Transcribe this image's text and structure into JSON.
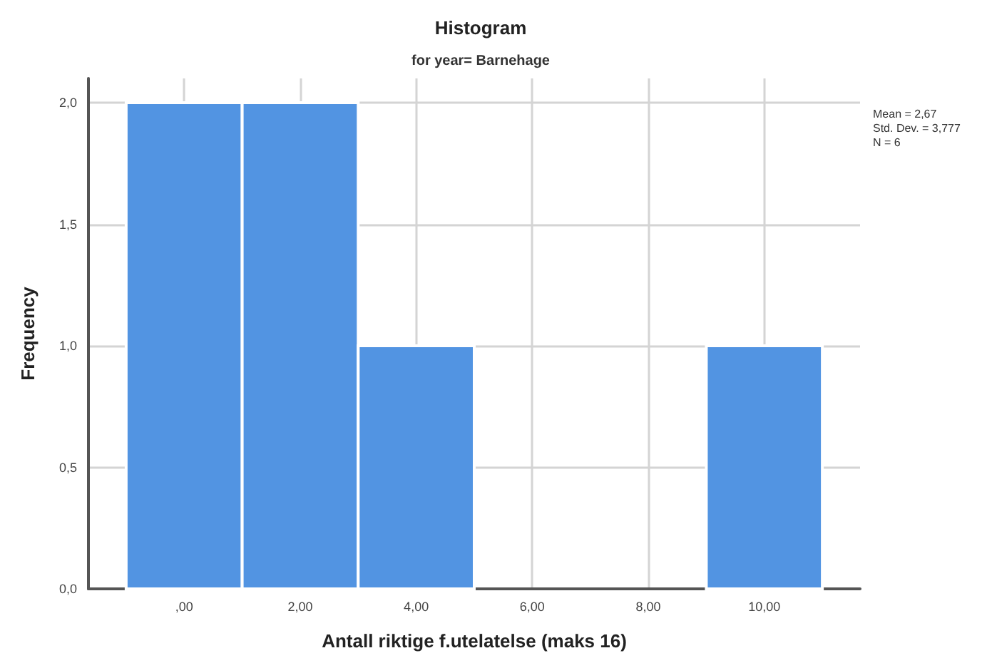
{
  "chart_data": {
    "type": "histogram",
    "title": "Histogram",
    "subtitle": "for year= Barnehage",
    "xlabel": "Antall riktige f.utelatelse (maks 16)",
    "ylabel": "Frequency",
    "bins": [
      -1,
      1,
      3,
      5,
      7,
      9,
      11
    ],
    "values": [
      2,
      2,
      1,
      0,
      0,
      1
    ],
    "color": "#5294e2",
    "xlim": [
      -1.65,
      11.65
    ],
    "xticks": [
      {
        "value": 0,
        "label": ",00"
      },
      {
        "value": 2,
        "label": "2,00"
      },
      {
        "value": 4,
        "label": "4,00"
      },
      {
        "value": 6,
        "label": "6,00"
      },
      {
        "value": 8,
        "label": "8,00"
      },
      {
        "value": 10,
        "label": "10,00"
      }
    ],
    "ylim": [
      0,
      2.1
    ],
    "yticks": [
      {
        "value": 0,
        "label": "0,0"
      },
      {
        "value": 0.5,
        "label": "0,5"
      },
      {
        "value": 1,
        "label": "1,0"
      },
      {
        "value": 1.5,
        "label": "1,5"
      },
      {
        "value": 2,
        "label": "2,0"
      }
    ],
    "grid": true,
    "annotations": [
      "Mean = 2,67",
      "Std. Dev. = 3,777",
      "N = 6"
    ]
  }
}
